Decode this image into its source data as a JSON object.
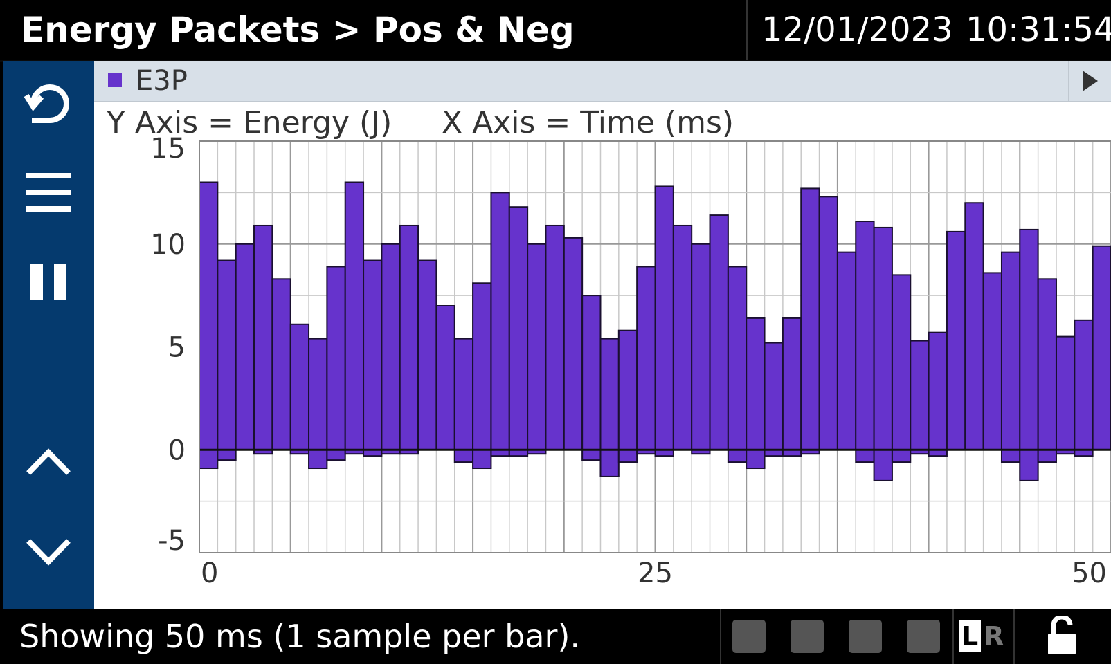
{
  "header": {
    "title": "Energy Packets > Pos & Neg",
    "date": "12/01/2023",
    "time": "10:31:54"
  },
  "sidebar": {
    "icons": [
      "back-icon",
      "menu-icon",
      "pause-icon",
      "chevron-up-icon",
      "chevron-down-icon"
    ]
  },
  "legend": {
    "label": "E3P",
    "color": "#6633cc"
  },
  "axis_labels": {
    "y": "Y Axis = Energy (J)",
    "x": "X Axis = Time (ms)"
  },
  "chart_data": {
    "type": "bar",
    "ylim": [
      -5,
      15
    ],
    "xlim": [
      0,
      50
    ],
    "yticks": [
      "15",
      "10",
      "5",
      "0",
      "-5"
    ],
    "xticks": [
      "0",
      "25",
      "50"
    ],
    "grid": true,
    "bar_color": "#6633cc",
    "series": [
      {
        "values": [
          13,
          9.2,
          10,
          10.9,
          8.3,
          6.1,
          5.4,
          8.9,
          13,
          9.2,
          10,
          10.9,
          9.2,
          7,
          5.4,
          8.1,
          12.5,
          11.8,
          10,
          10.9,
          10.3,
          7.5,
          5.4,
          5.8,
          8.9,
          12.8,
          10.9,
          10,
          11.4,
          8.9,
          6.4,
          5.2,
          6.4,
          12.7,
          12.3,
          9.6,
          11.1,
          10.8,
          8.5,
          5.3,
          5.7,
          10.6,
          12,
          8.6,
          9.6,
          10.7,
          8.3,
          5.5,
          6.3,
          9.9
        ]
      },
      {
        "values": [
          -0.9,
          -0.5,
          0,
          -0.2,
          0,
          -0.2,
          -0.9,
          -0.5,
          -0.2,
          -0.3,
          -0.2,
          -0.2,
          0,
          0,
          -0.6,
          -0.9,
          -0.3,
          -0.3,
          -0.2,
          0,
          0,
          -0.5,
          -1.3,
          -0.6,
          -0.2,
          -0.3,
          0,
          -0.2,
          0,
          -0.6,
          -0.9,
          -0.3,
          -0.3,
          -0.2,
          0,
          0,
          -0.6,
          -1.5,
          -0.6,
          -0.2,
          -0.3,
          0,
          0,
          0,
          -0.6,
          -1.5,
          -0.6,
          -0.2,
          -0.3,
          0
        ]
      }
    ]
  },
  "status": {
    "text": "Showing 50 ms (1 sample per bar).",
    "lr_left": "L",
    "lr_right": "R"
  }
}
